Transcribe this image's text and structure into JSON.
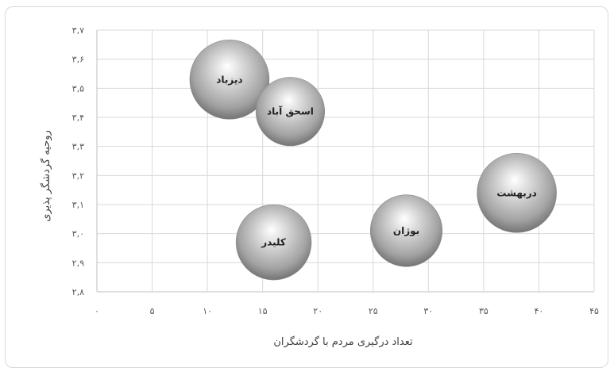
{
  "chart_data": {
    "type": "bubble",
    "title": "",
    "xlabel": "تعداد درگیری مردم با گردشگران",
    "ylabel": "روحیه گردشگر پذیری",
    "xlim": [
      0,
      45
    ],
    "ylim": [
      2.8,
      3.7
    ],
    "x_tick_labels": [
      "۰",
      "۵",
      "۱۰",
      "۱۵",
      "۲۰",
      "۲۵",
      "۳۰",
      "۳۵",
      "۴۰",
      "۴۵"
    ],
    "y_tick_labels": [
      "۲,۸",
      "۲,۹",
      "۳,۰",
      "۳,۱",
      "۳,۲",
      "۳,۳",
      "۳,۴",
      "۳,۵",
      "۳,۶",
      "۳,۷"
    ],
    "grid": true,
    "legend": "none",
    "points": [
      {
        "label": "دیزباد",
        "x": 12,
        "y": 3.53,
        "size": 1.0
      },
      {
        "label": "اسحق آباد",
        "x": 17.5,
        "y": 3.42,
        "size": 0.75
      },
      {
        "label": "دربهشت",
        "x": 38,
        "y": 3.14,
        "size": 1.0
      },
      {
        "label": "بوژان",
        "x": 28,
        "y": 3.01,
        "size": 0.82
      },
      {
        "label": "کلیدر",
        "x": 16,
        "y": 2.97,
        "size": 0.9
      }
    ],
    "bubble_color": "#9e9e9e"
  }
}
